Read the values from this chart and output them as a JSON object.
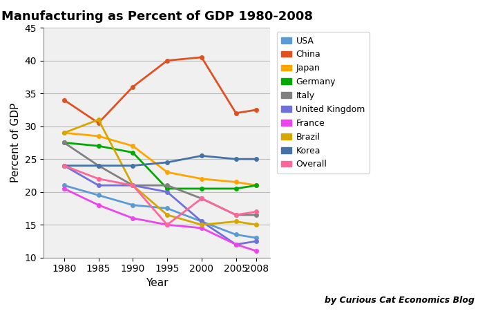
{
  "title": "Manufacturing as Percent of GDP 1980-2008",
  "xlabel": "Year",
  "ylabel": "Percent of GDP",
  "attribution": "by Curious Cat Economics Blog",
  "years": [
    1980,
    1985,
    1990,
    1995,
    2000,
    2005,
    2008
  ],
  "series": {
    "USA": {
      "color": "#5B9BD5",
      "values": [
        21,
        19.5,
        18,
        17.5,
        15.5,
        13.5,
        13
      ]
    },
    "China": {
      "color": "#E05020",
      "values": [
        34,
        30.5,
        36,
        40,
        40.5,
        32,
        32.5
      ]
    },
    "Japan": {
      "color": "#FFA500",
      "values": [
        29,
        28.5,
        27,
        23,
        22,
        21.5,
        21
      ]
    },
    "Germany": {
      "color": "#00AA00",
      "values": [
        27.5,
        27,
        26,
        20.5,
        20.5,
        20.5,
        21
      ]
    },
    "Italy": {
      "color": "#808080",
      "values": [
        27.5,
        24,
        21,
        21,
        19,
        16.5,
        16.5
      ]
    },
    "United Kingdom": {
      "color": "#7070DD",
      "values": [
        24,
        21,
        21,
        20,
        15.5,
        12,
        12.5
      ]
    },
    "France": {
      "color": "#EE44EE",
      "values": [
        20.5,
        18,
        16,
        15,
        14.5,
        12,
        11
      ]
    },
    "Brazil": {
      "color": "#D4A800",
      "values": [
        29,
        31,
        21,
        16.5,
        15,
        15.5,
        15
      ]
    },
    "Korea": {
      "color": "#4472A8",
      "values": [
        24,
        24,
        24,
        24.5,
        25.5,
        25,
        25
      ]
    },
    "Overall": {
      "color": "#FF6699",
      "values": [
        24,
        22,
        21,
        15,
        19,
        16.5,
        17
      ]
    }
  },
  "ylim": [
    10,
    45
  ],
  "yticks": [
    10,
    15,
    20,
    25,
    30,
    35,
    40,
    45
  ],
  "background_color": "#FFFFFF",
  "grid_color": "#BBBBBB",
  "plot_bg_color": "#F0F0F0"
}
